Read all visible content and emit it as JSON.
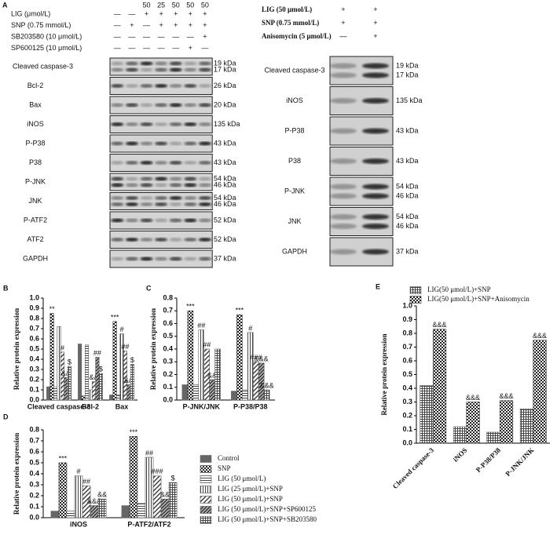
{
  "figure_a": {
    "label": "A",
    "left": {
      "doses": [
        null,
        null,
        "50",
        "25",
        "50",
        "50",
        "50"
      ],
      "conditions": [
        {
          "name": "LIG (μmol/L)",
          "cells": [
            "—",
            "—",
            "+",
            "+",
            "+",
            "+",
            "+"
          ]
        },
        {
          "name": "SNP (0.75 mmol/L)",
          "cells": [
            "—",
            "+",
            "—",
            "+",
            "+",
            "+",
            "+"
          ]
        },
        {
          "name": "SB203580 (10 μmol/L)",
          "cells": [
            "—",
            "—",
            "—",
            "—",
            "—",
            "—",
            "+"
          ]
        },
        {
          "name": "SP600125 (10 μmol/L)",
          "cells": [
            "—",
            "—",
            "—",
            "—",
            "—",
            "+",
            "—"
          ]
        }
      ],
      "blots": [
        {
          "name": "Cleaved caspase-3",
          "sizes": [
            "19 kDa",
            "17 kDa"
          ]
        },
        {
          "name": "Bcl-2",
          "sizes": [
            "26 kDa"
          ]
        },
        {
          "name": "Bax",
          "sizes": [
            "20 kDa"
          ]
        },
        {
          "name": "iNOS",
          "sizes": [
            "135 kDa"
          ]
        },
        {
          "name": "P-P38",
          "sizes": [
            "43 kDa"
          ]
        },
        {
          "name": "P38",
          "sizes": [
            "43 kDa"
          ]
        },
        {
          "name": "P-JNK",
          "sizes": [
            "54 kDa",
            "46 kDa"
          ]
        },
        {
          "name": "JNK",
          "sizes": [
            "54 kDa",
            "46 kDa"
          ]
        },
        {
          "name": "P-ATF2",
          "sizes": [
            "52 kDa"
          ]
        },
        {
          "name": "ATF2",
          "sizes": [
            "52 kDa"
          ]
        },
        {
          "name": "GAPDH",
          "sizes": [
            "37 kDa"
          ]
        }
      ]
    },
    "right": {
      "conditions": [
        {
          "name": "LIG (50 μmol/L)",
          "cells": [
            "+",
            "+"
          ]
        },
        {
          "name": "SNP (0.75 mmol/L)",
          "cells": [
            "+",
            "+"
          ]
        },
        {
          "name": "Anisomycin (5 μmol/L)",
          "cells": [
            "—",
            "+"
          ]
        }
      ],
      "blots": [
        {
          "name": "Cleaved caspase-3",
          "sizes": [
            "19 kDa",
            "17 kDa"
          ]
        },
        {
          "name": "iNOS",
          "sizes": [
            "135 kDa"
          ]
        },
        {
          "name": "P-P38",
          "sizes": [
            "43 kDa"
          ]
        },
        {
          "name": "P38",
          "sizes": [
            "43 kDa"
          ]
        },
        {
          "name": "P-JNK",
          "sizes": [
            "54 kDa",
            "46 kDa"
          ]
        },
        {
          "name": "JNK",
          "sizes": [
            "54 kDa",
            "46 kDa"
          ]
        },
        {
          "name": "GAPDH",
          "sizes": [
            "37 kDa"
          ]
        }
      ]
    }
  },
  "chart_data": [
    {
      "type": "bar",
      "label": "B",
      "y_label": "Relative protein expression",
      "categories": [
        "Cleaved caspase-3",
        "Bcl-2",
        "Bax"
      ],
      "ylim": [
        0,
        1
      ],
      "yticks": [
        {
          "value": 0,
          "label": "0.0"
        },
        0.1,
        0.2,
        0.3,
        0.4,
        0.5,
        0.6,
        0.7,
        0.8,
        0.9,
        {
          "value": 1,
          "label": "1.0"
        }
      ],
      "series": [
        {
          "color": "#666666",
          "pattern": "solid",
          "values": [
            0.13,
            0.55,
            0.05
          ],
          "sig": [
            null,
            null,
            null
          ]
        },
        {
          "color": "#333333",
          "pattern": "checker",
          "values": [
            0.85,
            0.04,
            0.77
          ],
          "sig": [
            "**",
            null,
            "***"
          ]
        },
        {
          "color": "#555555",
          "pattern": "hlines",
          "values": [
            0.13,
            0.54,
            0.05
          ],
          "sig": [
            null,
            null,
            null
          ]
        },
        {
          "color": "#555555",
          "pattern": "vlines",
          "values": [
            0.72,
            0.1,
            0.65
          ],
          "sig": [
            null,
            null,
            "#"
          ]
        },
        {
          "color": "#555555",
          "pattern": "diag",
          "values": [
            0.47,
            0.18,
            0.48
          ],
          "sig": [
            "#",
            "&&",
            "##"
          ]
        },
        {
          "color": "#555555",
          "pattern": "diag2",
          "values": [
            0.22,
            0.42,
            0.15
          ],
          "sig": [
            "&&",
            "##",
            "&&"
          ]
        },
        {
          "color": "#555555",
          "pattern": "grid",
          "values": [
            0.33,
            0.26,
            0.35
          ],
          "sig": [
            "$",
            "$",
            "$"
          ]
        }
      ]
    },
    {
      "type": "bar",
      "label": "C",
      "y_label": "Relative protein expression",
      "categories": [
        "P-JNK/JNK",
        "P-P38/P38"
      ],
      "ylim": [
        0,
        0.8
      ],
      "yticks": [
        {
          "value": 0,
          "label": "0.0"
        },
        0.1,
        0.2,
        0.3,
        0.4,
        0.5,
        0.6,
        0.7,
        0.8
      ],
      "series": [
        {
          "color": "#666666",
          "pattern": "solid",
          "values": [
            0.12,
            0.07
          ],
          "sig": [
            null,
            null
          ]
        },
        {
          "color": "#333333",
          "pattern": "checker",
          "values": [
            0.7,
            0.67
          ],
          "sig": [
            "***",
            "***"
          ]
        },
        {
          "color": "#555555",
          "pattern": "hlines",
          "values": [
            0.12,
            0.08
          ],
          "sig": [
            null,
            null
          ]
        },
        {
          "color": "#555555",
          "pattern": "vlines",
          "values": [
            0.55,
            0.53
          ],
          "sig": [
            "##",
            "#"
          ]
        },
        {
          "color": "#555555",
          "pattern": "diag",
          "values": [
            0.4,
            0.3
          ],
          "sig": [
            "##",
            "###"
          ]
        },
        {
          "color": "#555555",
          "pattern": "diag2",
          "values": [
            0.16,
            0.29
          ],
          "sig": [
            "&&",
            "&&&"
          ]
        },
        {
          "color": "#555555",
          "pattern": "grid",
          "values": [
            0.4,
            0.08
          ],
          "sig": [
            null,
            "&&&"
          ]
        }
      ]
    },
    {
      "type": "bar",
      "label": "D",
      "y_label": "Relative protein expression",
      "categories": [
        "iNOS",
        "P-ATF2/ATF2"
      ],
      "ylim": [
        0,
        0.8
      ],
      "yticks": [
        {
          "value": 0,
          "label": "0.0"
        },
        0.1,
        0.2,
        0.3,
        0.4,
        0.5,
        0.6,
        0.7,
        0.8
      ],
      "series": [
        {
          "name": "Control",
          "color": "#666666",
          "pattern": "solid",
          "values": [
            0.06,
            0.11
          ],
          "sig": [
            null,
            null
          ]
        },
        {
          "name": "SNP",
          "color": "#333333",
          "pattern": "checker",
          "values": [
            0.5,
            0.74
          ],
          "sig": [
            "***",
            "***"
          ]
        },
        {
          "name": "LIG (50 μmol/L)",
          "color": "#555555",
          "pattern": "hlines",
          "values": [
            0.06,
            0.13
          ],
          "sig": [
            null,
            null
          ]
        },
        {
          "name": "LIG (25 μmol/L)+SNP",
          "color": "#555555",
          "pattern": "vlines",
          "values": [
            0.38,
            0.55
          ],
          "sig": [
            "#",
            "##"
          ]
        },
        {
          "name": "LIG (50 μmol/L)+SNP",
          "color": "#555555",
          "pattern": "diag",
          "values": [
            0.29,
            0.38
          ],
          "sig": [
            "##",
            "###"
          ]
        },
        {
          "name": "LIG (50 μmol/L)+SNP+SP600125",
          "color": "#555555",
          "pattern": "diag2",
          "values": [
            0.11,
            0.17
          ],
          "sig": [
            "&&&",
            "&&"
          ]
        },
        {
          "name": "LIG (50 μmol/L)+SNP+SB203580",
          "color": "#555555",
          "pattern": "grid",
          "values": [
            0.17,
            0.32
          ],
          "sig": [
            "&&",
            "$"
          ]
        }
      ]
    },
    {
      "type": "bar",
      "label": "E",
      "y_label": "Relative protein expression",
      "categories": [
        "Cleaved caspase-3",
        "iNOS",
        "P-P38/P38",
        "P-JNK/JNK"
      ],
      "ylim": [
        0,
        1
      ],
      "yticks": [
        {
          "value": 0,
          "label": "0.0"
        },
        0.1,
        0.2,
        0.3,
        0.4,
        0.5,
        0.6,
        0.7,
        0.8,
        0.9,
        {
          "value": 1,
          "label": "1.0"
        }
      ],
      "series": [
        {
          "name": "LIG(50 μmol/L)+SNP",
          "color": "#555555",
          "pattern": "grid",
          "values": [
            0.42,
            0.12,
            0.08,
            0.25
          ],
          "sig": [
            null,
            null,
            null,
            null
          ]
        },
        {
          "name": "LIG(50 μmol/L)+SNP+Anisomycin",
          "color": "#333333",
          "pattern": "checker",
          "values": [
            0.83,
            0.3,
            0.31,
            0.75
          ],
          "sig": [
            "&&&",
            "&&&",
            "&&&",
            "&&&"
          ]
        }
      ]
    }
  ]
}
